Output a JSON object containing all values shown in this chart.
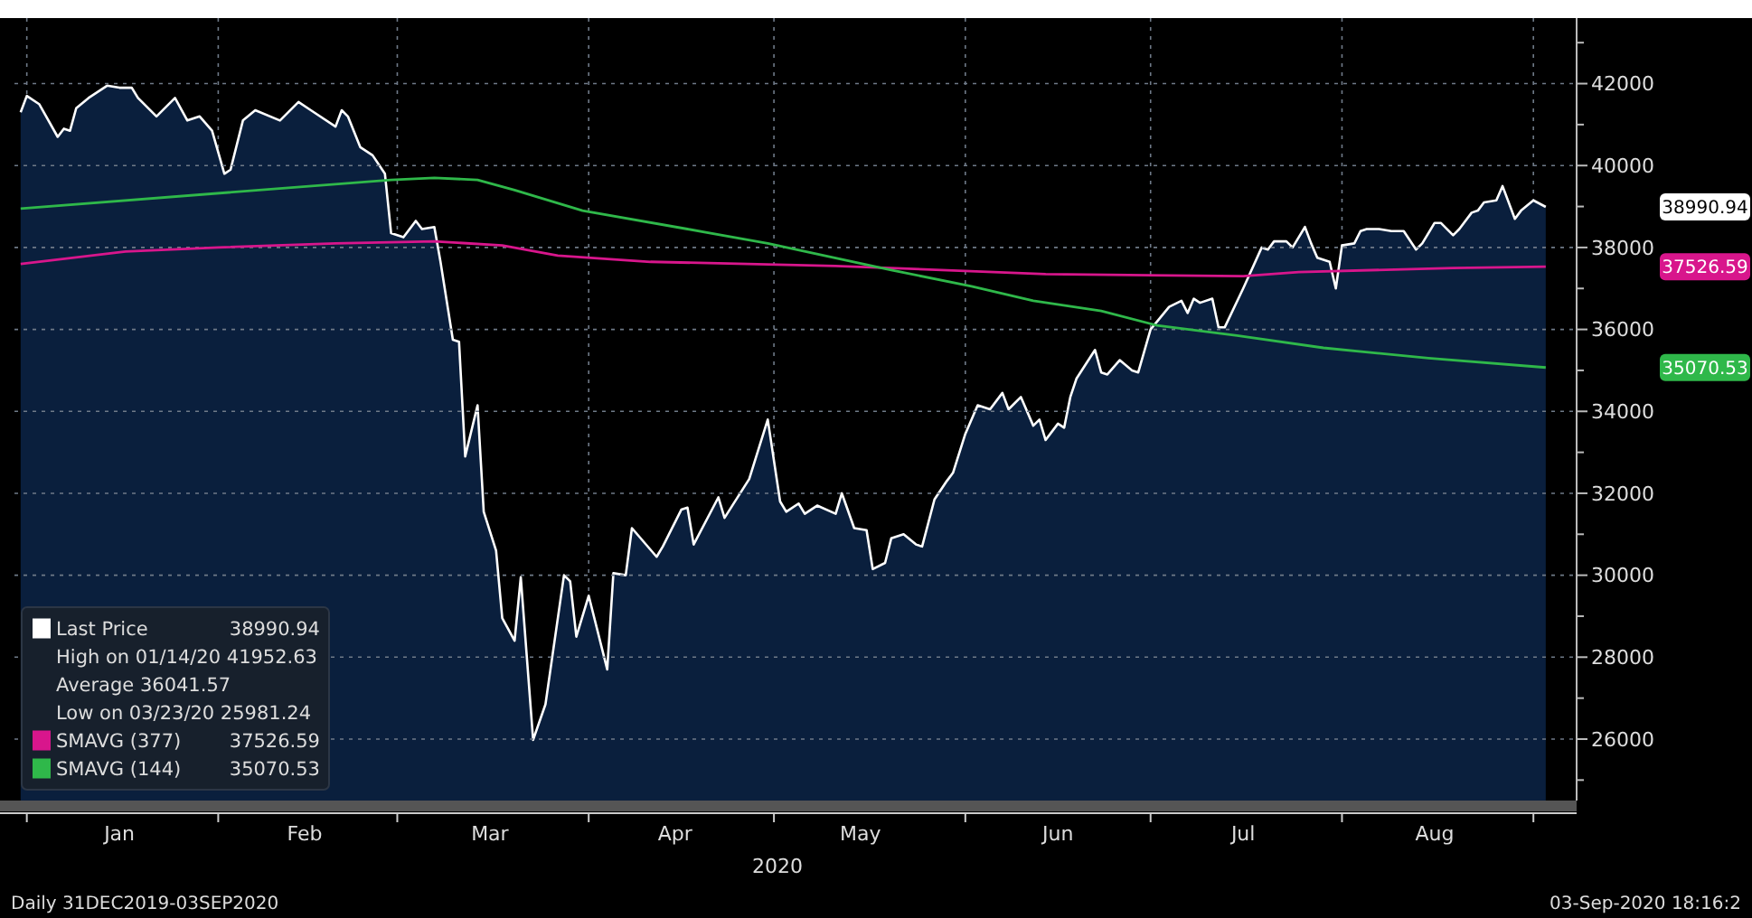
{
  "chart_data": {
    "type": "area",
    "xlabel": "2020",
    "xlim": [
      "2019-12-30",
      "2020-09-08"
    ],
    "xticks": [
      {
        "value": "2020-01-01",
        "label": null
      },
      {
        "value": "2020-01-16",
        "label": "Jan"
      },
      {
        "value": "2020-02-01",
        "label": null
      },
      {
        "value": "2020-02-15",
        "label": "Feb"
      },
      {
        "value": "2020-03-01",
        "label": null
      },
      {
        "value": "2020-03-16",
        "label": "Mar"
      },
      {
        "value": "2020-04-01",
        "label": null
      },
      {
        "value": "2020-04-15",
        "label": "Apr"
      },
      {
        "value": "2020-05-01",
        "label": null
      },
      {
        "value": "2020-05-15",
        "label": "May"
      },
      {
        "value": "2020-06-01",
        "label": null
      },
      {
        "value": "2020-06-16",
        "label": "Jun"
      },
      {
        "value": "2020-07-01",
        "label": null
      },
      {
        "value": "2020-07-16",
        "label": "Jul"
      },
      {
        "value": "2020-08-01",
        "label": null
      },
      {
        "value": "2020-08-16",
        "label": "Aug"
      },
      {
        "value": "2020-09-01",
        "label": null
      }
    ],
    "ylim": [
      24500,
      43600
    ],
    "yticks": [
      {
        "value": 25000,
        "label": null
      },
      26000,
      {
        "value": 27000,
        "label": null
      },
      28000,
      {
        "value": 29000,
        "label": null
      },
      30000,
      {
        "value": 31000,
        "label": null
      },
      32000,
      {
        "value": 33000,
        "label": null
      },
      34000,
      {
        "value": 35000,
        "label": null
      },
      36000,
      {
        "value": 37000,
        "label": null
      },
      38000,
      {
        "value": 39000,
        "label": null
      },
      40000,
      {
        "value": 41000,
        "label": null
      },
      42000,
      {
        "value": 43000,
        "label": null
      }
    ],
    "grid": true,
    "legend": "bottom left",
    "series": [
      {
        "name": "Last Price",
        "color": "#ffffff",
        "x": [
          "2019-12-31",
          "2020-01-01",
          "2020-01-03",
          "2020-01-06",
          "2020-01-07",
          "2020-01-08",
          "2020-01-09",
          "2020-01-11",
          "2020-01-14",
          "2020-01-16",
          "2020-01-18",
          "2020-01-19",
          "2020-01-22",
          "2020-01-25",
          "2020-01-27",
          "2020-01-29",
          "2020-01-31",
          "2020-02-02",
          "2020-02-03",
          "2020-02-05",
          "2020-02-07",
          "2020-02-11",
          "2020-02-14",
          "2020-02-16",
          "2020-02-20",
          "2020-02-21",
          "2020-02-22",
          "2020-02-24",
          "2020-02-26",
          "2020-02-28",
          "2020-02-29",
          "2020-03-02",
          "2020-03-04",
          "2020-03-05",
          "2020-03-07",
          "2020-03-08",
          "2020-03-10",
          "2020-03-11",
          "2020-03-12",
          "2020-03-14",
          "2020-03-15",
          "2020-03-17",
          "2020-03-18",
          "2020-03-20",
          "2020-03-21",
          "2020-03-23",
          "2020-03-25",
          "2020-03-28",
          "2020-03-29",
          "2020-03-30",
          "2020-04-01",
          "2020-04-04",
          "2020-04-05",
          "2020-04-07",
          "2020-04-08",
          "2020-04-12",
          "2020-04-13",
          "2020-04-16",
          "2020-04-17",
          "2020-04-18",
          "2020-04-22",
          "2020-04-23",
          "2020-04-27",
          "2020-04-30",
          "2020-05-02",
          "2020-05-03",
          "2020-05-05",
          "2020-05-06",
          "2020-05-08",
          "2020-05-11",
          "2020-05-12",
          "2020-05-14",
          "2020-05-16",
          "2020-05-17",
          "2020-05-19",
          "2020-05-20",
          "2020-05-22",
          "2020-05-24",
          "2020-05-25",
          "2020-05-27",
          "2020-05-29",
          "2020-05-30",
          "2020-06-01",
          "2020-06-03",
          "2020-06-05",
          "2020-06-07",
          "2020-06-08",
          "2020-06-10",
          "2020-06-12",
          "2020-06-13",
          "2020-06-14",
          "2020-06-16",
          "2020-06-17",
          "2020-06-18",
          "2020-06-19",
          "2020-06-22",
          "2020-06-23",
          "2020-06-24",
          "2020-06-26",
          "2020-06-28",
          "2020-06-29",
          "2020-07-01",
          "2020-07-04",
          "2020-07-06",
          "2020-07-07",
          "2020-07-08",
          "2020-07-09",
          "2020-07-11",
          "2020-07-12",
          "2020-07-13",
          "2020-07-16",
          "2020-07-19",
          "2020-07-20",
          "2020-07-21",
          "2020-07-23",
          "2020-07-24",
          "2020-07-26",
          "2020-07-27",
          "2020-07-28",
          "2020-07-30",
          "2020-07-31",
          "2020-08-01",
          "2020-08-03",
          "2020-08-04",
          "2020-08-05",
          "2020-08-07",
          "2020-08-09",
          "2020-08-11",
          "2020-08-13",
          "2020-08-14",
          "2020-08-16",
          "2020-08-17",
          "2020-08-19",
          "2020-08-20",
          "2020-08-22",
          "2020-08-23",
          "2020-08-24",
          "2020-08-26",
          "2020-08-27",
          "2020-08-29",
          "2020-08-30",
          "2020-09-01",
          "2020-09-03"
        ],
        "values": [
          41300,
          41700,
          41500,
          40700,
          40900,
          40850,
          41400,
          41650,
          41950,
          41900,
          41900,
          41650,
          41200,
          41650,
          41100,
          41200,
          40850,
          39800,
          39900,
          41100,
          41350,
          41100,
          41550,
          41350,
          40950,
          41350,
          41200,
          40450,
          40250,
          39800,
          38350,
          38250,
          38650,
          38450,
          38500,
          37650,
          35750,
          35700,
          32900,
          34150,
          31550,
          30600,
          28950,
          28400,
          29950,
          25980,
          26850,
          30000,
          29850,
          28500,
          29500,
          27700,
          30050,
          30000,
          31150,
          30450,
          30700,
          31600,
          31650,
          30750,
          31900,
          31400,
          32350,
          33800,
          31800,
          31550,
          31750,
          31500,
          31700,
          31500,
          32000,
          31150,
          31100,
          30150,
          30300,
          30900,
          31000,
          30750,
          30700,
          31850,
          32300,
          32500,
          33450,
          34150,
          34050,
          34450,
          34050,
          34350,
          33650,
          33800,
          33300,
          33700,
          33600,
          34350,
          34800,
          35500,
          34950,
          34900,
          35250,
          35000,
          34950,
          36000,
          36550,
          36700,
          36400,
          36750,
          36650,
          36750,
          36050,
          36050,
          37000,
          38000,
          37950,
          38150,
          38150,
          38000,
          38500,
          38100,
          37750,
          37650,
          37000,
          38050,
          38100,
          38400,
          38450,
          38450,
          38400,
          38400,
          37950,
          38100,
          38600,
          38600,
          38300,
          38450,
          38850,
          38900,
          39100,
          39150,
          39500,
          38700,
          38900,
          39150,
          38990
        ]
      },
      {
        "name": "SMAVG (377)",
        "type": "line",
        "color": "#d8168c",
        "x": [
          "2019-12-31",
          "2020-01-17",
          "2020-02-01",
          "2020-02-20",
          "2020-03-07",
          "2020-03-18",
          "2020-03-27",
          "2020-04-11",
          "2020-05-11",
          "2020-06-14",
          "2020-07-16",
          "2020-07-25",
          "2020-08-19",
          "2020-09-03"
        ],
        "values": [
          37600,
          37900,
          38000,
          38100,
          38150,
          38050,
          37800,
          37650,
          37550,
          37350,
          37300,
          37400,
          37500,
          37530
        ]
      },
      {
        "name": "SMAVG (144)",
        "type": "line",
        "color": "#2fb84a",
        "x": [
          "2019-12-31",
          "2020-02-29",
          "2020-03-07",
          "2020-03-14",
          "2020-03-20",
          "2020-03-31",
          "2020-04-17",
          "2020-04-30",
          "2020-05-20",
          "2020-06-02",
          "2020-06-12",
          "2020-06-23",
          "2020-07-02",
          "2020-07-15",
          "2020-07-29",
          "2020-08-15",
          "2020-09-03"
        ],
        "values": [
          38950,
          39650,
          39700,
          39650,
          39400,
          38900,
          38450,
          38100,
          37450,
          37050,
          36700,
          36450,
          36100,
          35850,
          35550,
          35300,
          35070
        ]
      }
    ],
    "annotations": [
      "38990.94",
      "High on 01/14/20 41952.63",
      "Average 36041.57",
      "Low on 03/23/20 25981.24",
      "37526.59",
      "35070.53",
      "Daily 31DEC2019-03SEP2020",
      "03-Sep-2020 18:16:2"
    ]
  }
}
